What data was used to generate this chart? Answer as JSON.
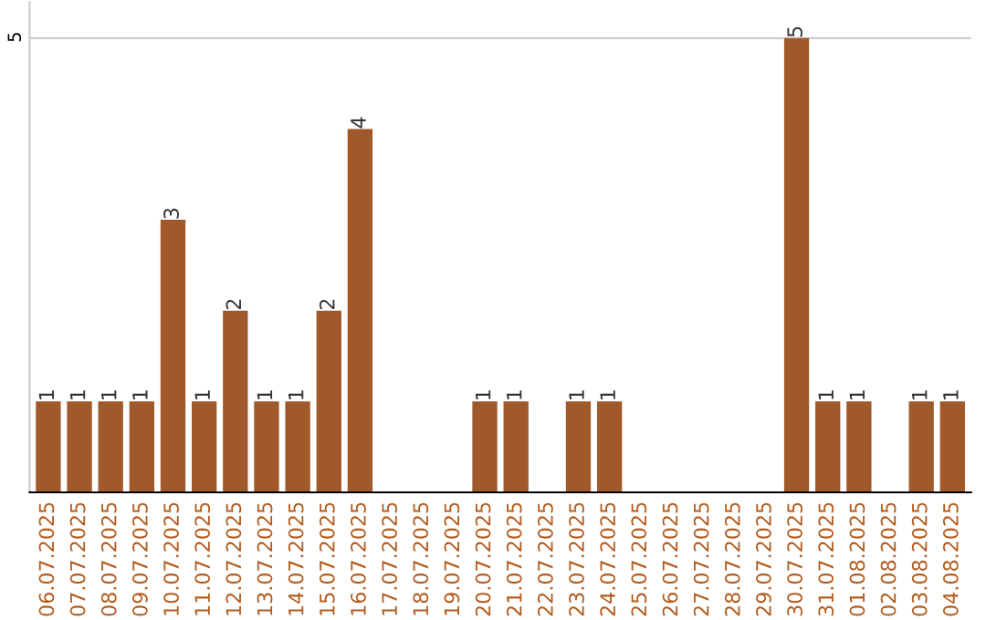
{
  "chart_data": {
    "type": "bar",
    "categories": [
      "06.07.2025",
      "07.07.2025",
      "08.07.2025",
      "09.07.2025",
      "10.07.2025",
      "11.07.2025",
      "12.07.2025",
      "13.07.2025",
      "14.07.2025",
      "15.07.2025",
      "16.07.2025",
      "17.07.2025",
      "18.07.2025",
      "19.07.2025",
      "20.07.2025",
      "21.07.2025",
      "22.07.2025",
      "23.07.2025",
      "24.07.2025",
      "25.07.2025",
      "26.07.2025",
      "27.07.2025",
      "28.07.2025",
      "29.07.2025",
      "30.07.2025",
      "31.07.2025",
      "01.08.2025",
      "02.08.2025",
      "03.08.2025",
      "04.08.2025"
    ],
    "values": [
      1,
      1,
      1,
      1,
      3,
      1,
      2,
      1,
      1,
      2,
      4,
      0,
      0,
      0,
      1,
      1,
      0,
      1,
      1,
      0,
      0,
      0,
      0,
      0,
      5,
      1,
      1,
      0,
      1,
      1
    ],
    "value_labels": [
      "1",
      "1",
      "1",
      "1",
      "3",
      "1",
      "2",
      "1",
      "1",
      "2",
      "4",
      null,
      null,
      null,
      "1",
      "1",
      null,
      "1",
      "1",
      null,
      null,
      null,
      null,
      null,
      "5",
      "1",
      "1",
      null,
      "1",
      "1"
    ],
    "color": "#a0592a",
    "ylim": [
      0,
      5.4
    ],
    "yticks": [
      5
    ],
    "grid": "y"
  }
}
